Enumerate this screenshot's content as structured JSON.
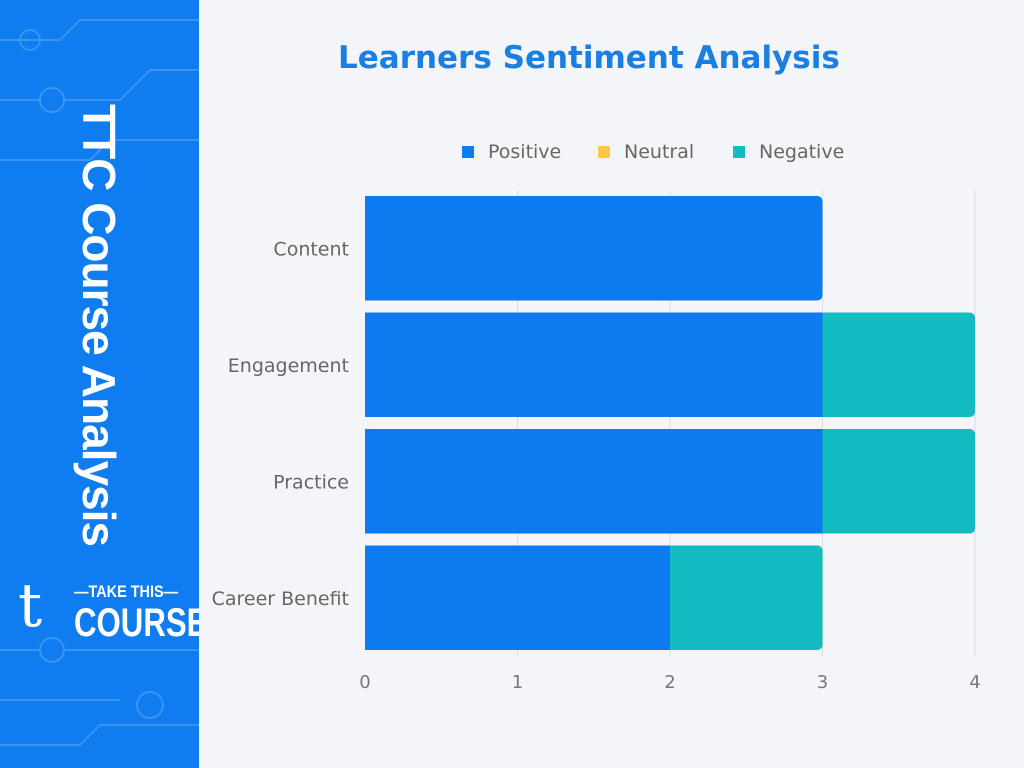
{
  "sidebar": {
    "title": "TTC Course Analysis",
    "logo": {
      "mark": "t",
      "line1": "—TAKE THIS—",
      "line2": "COURSE"
    }
  },
  "colors": {
    "sidebar": "#0f7cf0",
    "positive": "#0b7bef",
    "neutral": "#ffc845",
    "negative": "#12bcc1",
    "title": "#1a7fe0"
  },
  "chart_data": {
    "type": "bar",
    "orientation": "horizontal",
    "stacked": true,
    "title": "Learners Sentiment Analysis",
    "categories": [
      "Content",
      "Engagement",
      "Practice",
      "Career Benefit"
    ],
    "series": [
      {
        "name": "Positive",
        "values": [
          3,
          3,
          3,
          2
        ]
      },
      {
        "name": "Neutral",
        "values": [
          0,
          0,
          0,
          0
        ]
      },
      {
        "name": "Negative",
        "values": [
          0,
          1,
          1,
          1
        ]
      }
    ],
    "xlim": [
      0,
      4
    ],
    "xticks": [
      "0",
      "1",
      "2",
      "3",
      "4"
    ],
    "grid": true,
    "legend": "top"
  }
}
